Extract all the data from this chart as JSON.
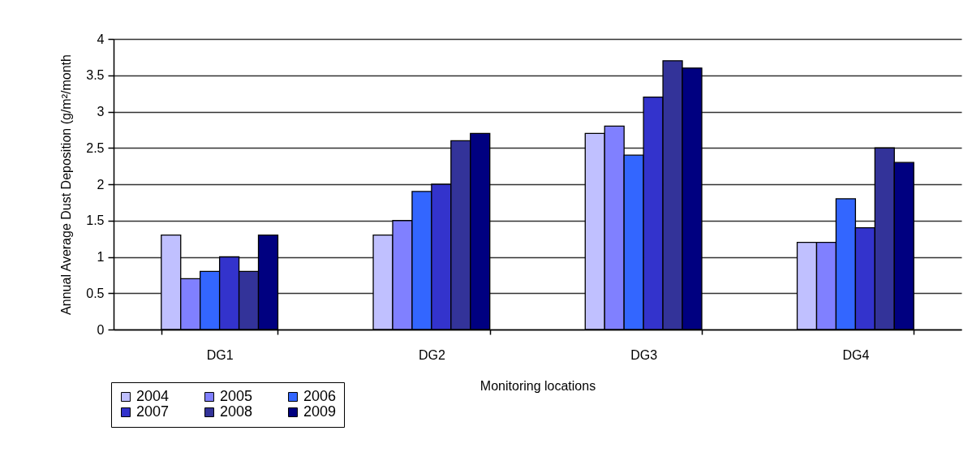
{
  "chart_data": {
    "type": "bar",
    "xlabel": "Monitoring locations",
    "ylabel": "Annual Average Dust Deposition (g/m²/month",
    "categories": [
      "DG1",
      "DG2",
      "DG3",
      "DG4"
    ],
    "series": [
      {
        "name": "2004",
        "color": "#c0c0ff",
        "values": [
          1.3,
          1.3,
          2.7,
          1.2
        ]
      },
      {
        "name": "2005",
        "color": "#8080ff",
        "values": [
          0.7,
          1.5,
          2.8,
          1.2
        ]
      },
      {
        "name": "2006",
        "color": "#3366ff",
        "values": [
          0.8,
          1.9,
          2.4,
          1.8
        ]
      },
      {
        "name": "2007",
        "color": "#3333cc",
        "values": [
          1.0,
          2.0,
          3.2,
          1.4
        ]
      },
      {
        "name": "2008",
        "color": "#333399",
        "values": [
          0.8,
          2.6,
          3.7,
          2.5
        ]
      },
      {
        "name": "2009",
        "color": "#000080",
        "values": [
          1.3,
          2.7,
          3.6,
          2.3
        ]
      }
    ],
    "ylim": [
      0,
      4
    ],
    "yticks": [
      0,
      0.5,
      1,
      1.5,
      2,
      2.5,
      3,
      3.5,
      4
    ],
    "grid": "y",
    "legend": "bottom left"
  }
}
